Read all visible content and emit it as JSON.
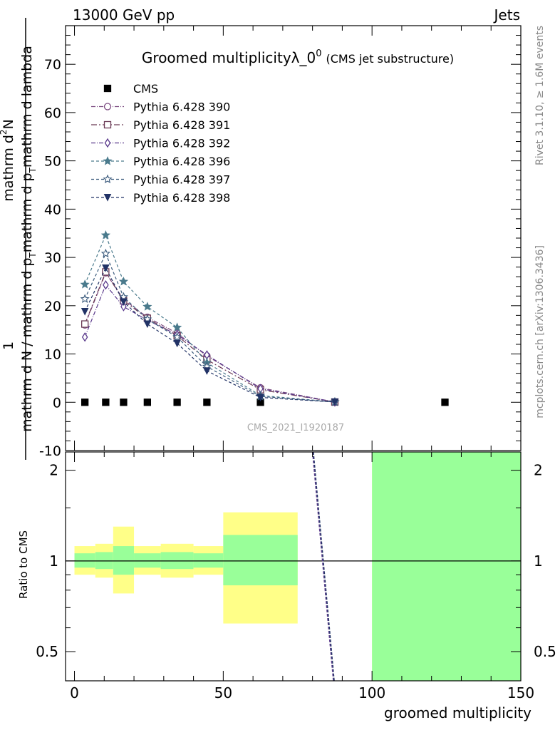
{
  "header": {
    "left": "13000 GeV pp",
    "right": "Jets"
  },
  "side_labels": {
    "rivet": "Rivet 3.1.10, ≥ 1.6M events",
    "mcplots": "mcplots.cern.ch [arXiv:1306.3436]"
  },
  "watermark": "CMS_2021_I1920187",
  "chart_data": [
    {
      "type": "line",
      "title": "Groomed multiplicity",
      "title_sym": "λ_0",
      "title_sup": "0",
      "subtitle": "(CMS jet substructure)",
      "ylabel": "1 / N dN / d p_T d lambda",
      "ylabel_parts": [
        "1",
        "mathrm d N / mathrm d p",
        "T",
        "mathrm d p",
        "T",
        "mathrm d lambda",
        "mathrm d",
        "2",
        "N"
      ],
      "ylim": [
        -10,
        78
      ],
      "yticks": [
        -10,
        0,
        10,
        20,
        30,
        40,
        50,
        60,
        70
      ],
      "xlim": [
        -3,
        150
      ],
      "legend_position": "top-left",
      "series": [
        {
          "name": "CMS",
          "color": "#000000",
          "marker": "square-filled",
          "dash": "",
          "x": [
            3.5,
            10.5,
            16.5,
            24.5,
            34.5,
            44.5,
            62.5,
            124.5
          ],
          "y": [
            0,
            0,
            0,
            0,
            0,
            0,
            0,
            0
          ]
        },
        {
          "name": "Pythia 6.428 390",
          "color": "#7b4a80",
          "marker": "circle-open",
          "dash": "6,2,1,2",
          "x": [
            3.5,
            10.5,
            16.5,
            24.5,
            34.5,
            44.5,
            62.5,
            87.5
          ],
          "y": [
            16.0,
            26.8,
            21.3,
            17.6,
            14.3,
            9.6,
            3.0,
            0.05
          ]
        },
        {
          "name": "Pythia 6.428 391",
          "color": "#6b3a55",
          "marker": "square-open",
          "dash": "8,3,2,3",
          "x": [
            3.5,
            10.5,
            16.5,
            24.5,
            34.5,
            44.5,
            62.5,
            87.5
          ],
          "y": [
            16.2,
            27.0,
            21.0,
            17.4,
            13.8,
            8.8,
            2.6,
            0.05
          ]
        },
        {
          "name": "Pythia 6.428 392",
          "color": "#5a3a8c",
          "marker": "diamond-open",
          "dash": "6,2,1,2",
          "x": [
            3.5,
            10.5,
            16.5,
            24.5,
            34.5,
            44.5,
            62.5,
            87.5
          ],
          "y": [
            13.5,
            24.3,
            19.8,
            17.0,
            14.0,
            9.8,
            2.8,
            0.05
          ]
        },
        {
          "name": "Pythia 6.428 396",
          "color": "#4a7a8c",
          "marker": "star-filled",
          "dash": "4,3",
          "x": [
            3.5,
            10.5,
            16.5,
            24.5,
            34.5,
            44.5,
            62.5,
            87.5
          ],
          "y": [
            24.4,
            34.6,
            25.0,
            19.8,
            15.5,
            8.2,
            1.4,
            0.05
          ]
        },
        {
          "name": "Pythia 6.428 397",
          "color": "#3a5a7c",
          "marker": "star-open",
          "dash": "4,3",
          "x": [
            3.5,
            10.5,
            16.5,
            24.5,
            34.5,
            44.5,
            62.5,
            87.5
          ],
          "y": [
            21.4,
            30.8,
            21.8,
            17.2,
            13.5,
            7.4,
            1.2,
            0.05
          ]
        },
        {
          "name": "Pythia 6.428 398",
          "color": "#223366",
          "marker": "triangle-down-filled",
          "dash": "4,3",
          "x": [
            3.5,
            10.5,
            16.5,
            24.5,
            34.5,
            44.5,
            62.5,
            87.5
          ],
          "y": [
            18.8,
            27.8,
            20.8,
            16.2,
            12.2,
            6.5,
            1.0,
            0.05
          ]
        }
      ]
    },
    {
      "type": "area",
      "ylabel": "Ratio to CMS",
      "xlabel": "groomed multiplicity",
      "yscale": "log",
      "ylim": [
        0.4,
        2.3
      ],
      "yticks": [
        0.5,
        1,
        2
      ],
      "ytick_labels": [
        "0.5",
        "1",
        "2"
      ],
      "xlim": [
        -3,
        150
      ],
      "xticks": [
        0,
        50,
        100,
        150
      ],
      "xtick_labels": [
        "0",
        "50",
        "100",
        "150"
      ],
      "reference": 1,
      "bins": [
        {
          "x0": 0,
          "x1": 7,
          "green": [
            0.95,
            1.06
          ],
          "yellow": [
            0.9,
            1.12
          ]
        },
        {
          "x0": 7,
          "x1": 13,
          "green": [
            0.94,
            1.07
          ],
          "yellow": [
            0.88,
            1.14
          ]
        },
        {
          "x0": 13,
          "x1": 20,
          "green": [
            0.9,
            1.12
          ],
          "yellow": [
            0.78,
            1.3
          ]
        },
        {
          "x0": 20,
          "x1": 29,
          "green": [
            0.95,
            1.06
          ],
          "yellow": [
            0.9,
            1.12
          ]
        },
        {
          "x0": 29,
          "x1": 40,
          "green": [
            0.94,
            1.07
          ],
          "yellow": [
            0.88,
            1.14
          ]
        },
        {
          "x0": 40,
          "x1": 50,
          "green": [
            0.95,
            1.06
          ],
          "yellow": [
            0.9,
            1.12
          ]
        },
        {
          "x0": 50,
          "x1": 75,
          "green": [
            0.83,
            1.22
          ],
          "yellow": [
            0.62,
            1.45
          ]
        },
        {
          "x0": 100,
          "x1": 150,
          "green": [
            0.4,
            2.3
          ],
          "yellow": [
            0.4,
            2.3
          ]
        }
      ],
      "ratio_lines": [
        {
          "color": "#5a3a8c",
          "x": [
            80.0,
            87.0
          ],
          "y": [
            2.3,
            0.4
          ]
        },
        {
          "color": "#223366",
          "x": [
            80.3,
            87.3
          ],
          "y": [
            2.3,
            0.4
          ]
        }
      ]
    }
  ]
}
